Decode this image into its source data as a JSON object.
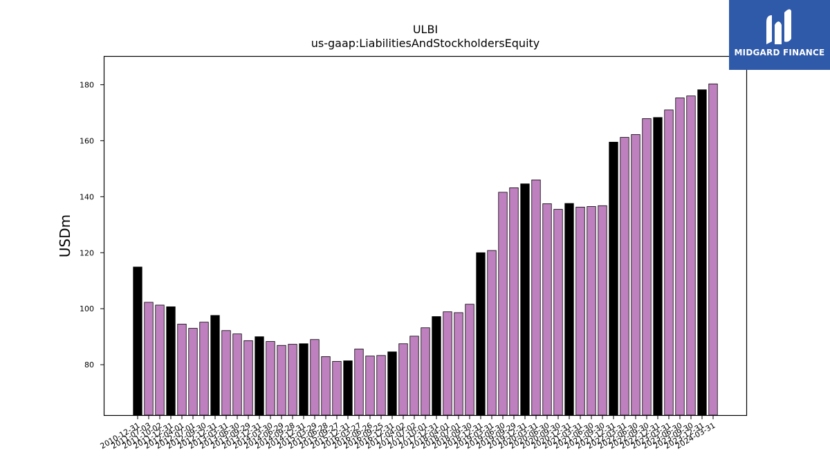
{
  "chart_data": {
    "type": "bar",
    "title": "ULBI",
    "subtitle": "us-gaap:LiabilitiesAndStockholdersEquity",
    "xlabel": "",
    "ylabel": "USDm",
    "ylim": [
      62,
      190
    ],
    "yticks": [
      80,
      100,
      120,
      140,
      160,
      180
    ],
    "grid": false,
    "colors": {
      "annual": "#000000",
      "quarterly": "#bf80bf",
      "edge": "#000000"
    },
    "categories": [
      "2010-12-31",
      "2011-07-03",
      "2011-10-02",
      "2011-12-31",
      "2012-04-01",
      "2012-07-01",
      "2012-09-30",
      "2012-12-31",
      "2013-03-31",
      "2013-06-30",
      "2013-09-29",
      "2013-12-31",
      "2014-03-30",
      "2014-06-29",
      "2014-09-28",
      "2014-12-31",
      "2015-03-29",
      "2015-06-28",
      "2015-09-27",
      "2015-12-31",
      "2016-03-27",
      "2016-06-26",
      "2016-09-25",
      "2016-12-31",
      "2017-04-02",
      "2017-07-02",
      "2017-10-01",
      "2017-12-31",
      "2018-04-01",
      "2018-07-01",
      "2018-09-30",
      "2018-12-31",
      "2019-03-31",
      "2019-06-30",
      "2019-09-29",
      "2019-12-31",
      "2020-03-31",
      "2020-06-30",
      "2020-09-30",
      "2020-12-31",
      "2021-03-31",
      "2021-06-30",
      "2021-09-30",
      "2021-12-31",
      "2022-03-31",
      "2022-06-30",
      "2022-09-30",
      "2022-12-31",
      "2023-03-31",
      "2023-06-30",
      "2023-09-30",
      "2023-12-31",
      "2024-03-31"
    ],
    "values": [
      114.9,
      102.3,
      101.3,
      100.7,
      94.5,
      93.0,
      95.2,
      97.6,
      92.2,
      91.0,
      88.6,
      90.0,
      88.3,
      86.9,
      87.3,
      87.5,
      89.0,
      82.9,
      81.2,
      81.4,
      85.6,
      83.1,
      83.3,
      84.6,
      87.5,
      90.2,
      93.2,
      97.2,
      98.9,
      98.6,
      101.6,
      120.0,
      120.8,
      141.6,
      143.2,
      144.6,
      146.0,
      137.5,
      135.5,
      137.6,
      136.3,
      136.5,
      136.8,
      159.5,
      161.2,
      162.2,
      167.9,
      168.3,
      171.0,
      175.3,
      176.0,
      178.2,
      180.3
    ],
    "annual_flags": [
      1,
      0,
      0,
      1,
      0,
      0,
      0,
      1,
      0,
      0,
      0,
      1,
      0,
      0,
      0,
      1,
      0,
      0,
      0,
      1,
      0,
      0,
      0,
      1,
      0,
      0,
      0,
      1,
      0,
      0,
      0,
      1,
      0,
      0,
      0,
      1,
      0,
      0,
      0,
      1,
      0,
      0,
      0,
      1,
      0,
      0,
      0,
      1,
      0,
      0,
      0,
      1,
      0
    ]
  },
  "logo": {
    "text": "MIDGARD FINANCE",
    "icon": "midgard-logo-icon"
  }
}
